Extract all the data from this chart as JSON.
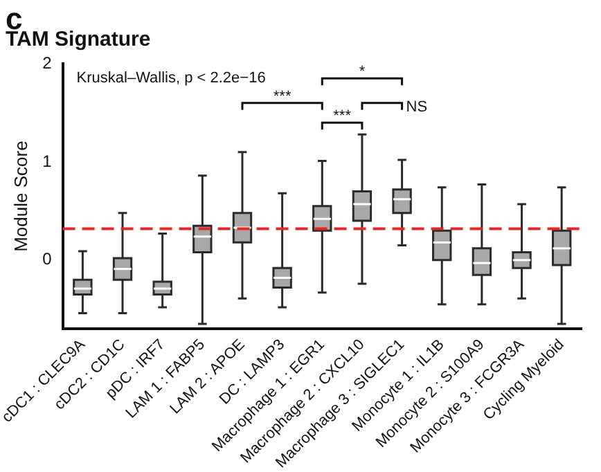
{
  "chart_data": {
    "type": "box",
    "title": "TAM Signature",
    "ylabel": "Module Score",
    "categories": [
      "cDC1 : CLEC9A",
      "cDC2 : CD1C",
      "pDC : IRF7",
      "LAM 1 : FABP5",
      "LAM 2 : APOE",
      "DC : LAMP3",
      "Macrophage 1 : EGR1",
      "Macrophage 2 : CXCL10",
      "Macrophage 3 : SIGLEC1",
      "Monocyte 1 : IL1B",
      "Monocyte 2 : S100A9",
      "Monocyte 3 : FCGR3A",
      "Cycling Myeloid"
    ],
    "boxes": [
      {
        "low": -0.54,
        "q1": -0.35,
        "median": -0.29,
        "q3": -0.2,
        "high": 0.09
      },
      {
        "low": -0.54,
        "q1": -0.2,
        "median": -0.09,
        "q3": 0.02,
        "high": 0.48
      },
      {
        "low": -0.48,
        "q1": -0.35,
        "median": -0.29,
        "q3": -0.22,
        "high": 0.27
      },
      {
        "low": -0.65,
        "q1": 0.08,
        "median": 0.24,
        "q3": 0.35,
        "high": 0.86
      },
      {
        "low": -0.39,
        "q1": 0.18,
        "median": 0.33,
        "q3": 0.48,
        "high": 1.1
      },
      {
        "low": -0.48,
        "q1": -0.28,
        "median": -0.18,
        "q3": -0.08,
        "high": 0.68
      },
      {
        "low": -0.33,
        "q1": 0.3,
        "median": 0.42,
        "q3": 0.55,
        "high": 1.01
      },
      {
        "low": -0.24,
        "q1": 0.4,
        "median": 0.57,
        "q3": 0.7,
        "high": 1.28
      },
      {
        "low": 0.15,
        "q1": 0.48,
        "median": 0.62,
        "q3": 0.72,
        "high": 1.02
      },
      {
        "low": -0.45,
        "q1": 0.0,
        "median": 0.18,
        "q3": 0.3,
        "high": 0.74
      },
      {
        "low": -0.45,
        "q1": -0.15,
        "median": -0.03,
        "q3": 0.12,
        "high": 0.77
      },
      {
        "low": -0.39,
        "q1": -0.08,
        "median": 0.0,
        "q3": 0.08,
        "high": 0.57
      },
      {
        "low": -0.65,
        "q1": -0.05,
        "median": 0.12,
        "q3": 0.3,
        "high": 0.74
      }
    ],
    "ylim": [
      -0.7,
      2
    ],
    "yticks": [
      0,
      1,
      2
    ],
    "grid": false,
    "legend": false,
    "ref_lines": [
      {
        "axis": "y",
        "value": 0.32,
        "color": "#e8262a",
        "line_style": "dashed"
      }
    ],
    "annotations": [
      "c",
      "Kruskal–Wallis, p < 2.2e−16",
      "***",
      "*",
      "***",
      "NS"
    ]
  }
}
